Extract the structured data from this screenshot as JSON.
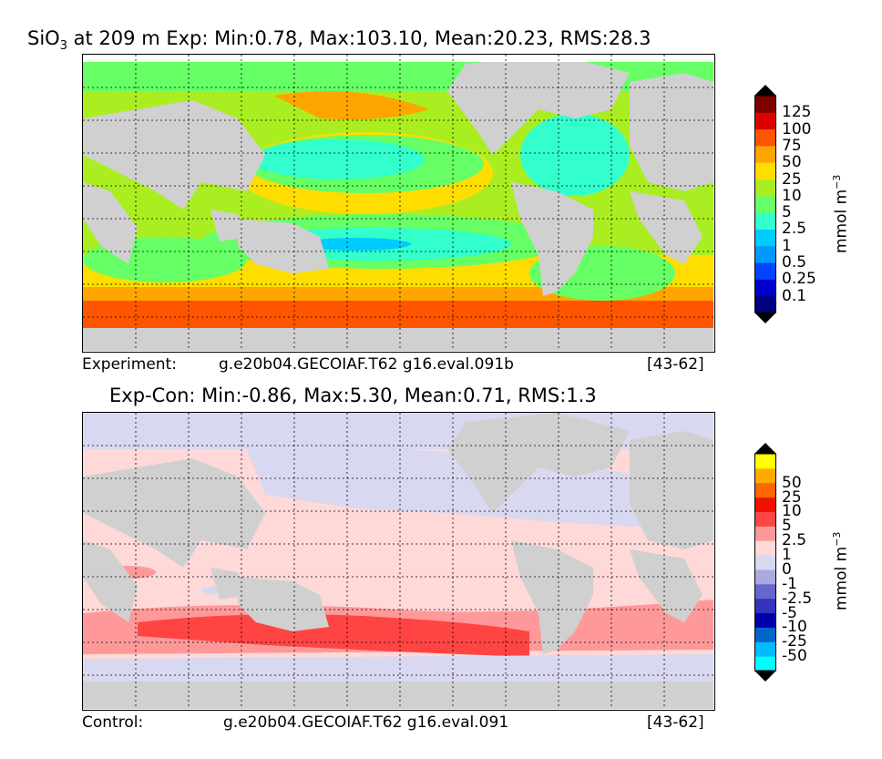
{
  "panels": [
    {
      "title_prefix": "SiO",
      "title_sub": "3",
      "title_rest": " at 209 m Exp: Min:0.78, Max:103.10, Mean:20.23, RMS:28.3",
      "footer_left": "Experiment:",
      "footer_mid": "g.e20b04.GECOIAF.T62 g16.eval.091b",
      "footer_right": "[43-62]",
      "colorbar": {
        "label": "mmol m",
        "label_sup": "−3",
        "levels": [
          "0.1",
          "0.25",
          "0.5",
          "1",
          "2.5",
          "5",
          "10",
          "25",
          "50",
          "75",
          "100",
          "125"
        ],
        "colors": [
          "#000080",
          "#0000cd",
          "#0044ff",
          "#0099ff",
          "#00ccff",
          "#33ffcc",
          "#66ff66",
          "#aaee22",
          "#ffdd00",
          "#ffa500",
          "#ff5500",
          "#dd0000",
          "#800000"
        ],
        "under_color": "#000000",
        "over_color": "#000000"
      }
    },
    {
      "title_prefix": "Exp-Con: Min:-0.86, Max:5.30, Mean:0.71, RMS:1.3",
      "title_sub": "",
      "title_rest": "",
      "footer_left": "Control:",
      "footer_mid": "g.e20b04.GECOIAF.T62 g16.eval.091",
      "footer_right": "[43-62]",
      "colorbar": {
        "label": "mmol m",
        "label_sup": "−3",
        "levels": [
          "-50",
          "-25",
          "-10",
          "-5",
          "-2.5",
          "-1",
          "0",
          "1",
          "2.5",
          "5",
          "10",
          "25",
          "50"
        ],
        "colors": [
          "#00ffff",
          "#00bbff",
          "#0066cc",
          "#0000aa",
          "#3333bb",
          "#6666cc",
          "#aaaadd",
          "#d8d8f0",
          "#ffd8d8",
          "#ff9999",
          "#ff4444",
          "#ee1100",
          "#ff6600",
          "#ffaa00",
          "#ffff00"
        ],
        "under_color": "#000000",
        "over_color": "#000000"
      }
    }
  ],
  "chart_data": [
    {
      "type": "heatmap",
      "title": "SiO3 at 209 m Exp: Min:0.78, Max:103.10, Mean:20.23, RMS:28.3",
      "variable": "SiO3",
      "depth": "209 m",
      "stats": {
        "min": 0.78,
        "max": 103.1,
        "mean": 20.23,
        "rms": 28.3
      },
      "units": "mmol m^-3",
      "contour_levels": [
        0.1,
        0.25,
        0.5,
        1,
        2.5,
        5,
        10,
        25,
        50,
        75,
        100,
        125
      ],
      "grid": true,
      "legend": "right colorbar"
    },
    {
      "type": "heatmap",
      "title": "Exp-Con: Min:-0.86, Max:5.30, Mean:0.71, RMS:1.3",
      "stats": {
        "min": -0.86,
        "max": 5.3,
        "mean": 0.71,
        "rms": 1.3
      },
      "units": "mmol m^-3",
      "contour_levels": [
        -50,
        -25,
        -10,
        -5,
        -2.5,
        -1,
        0,
        1,
        2.5,
        5,
        10,
        25,
        50
      ],
      "grid": true,
      "legend": "right colorbar"
    }
  ]
}
